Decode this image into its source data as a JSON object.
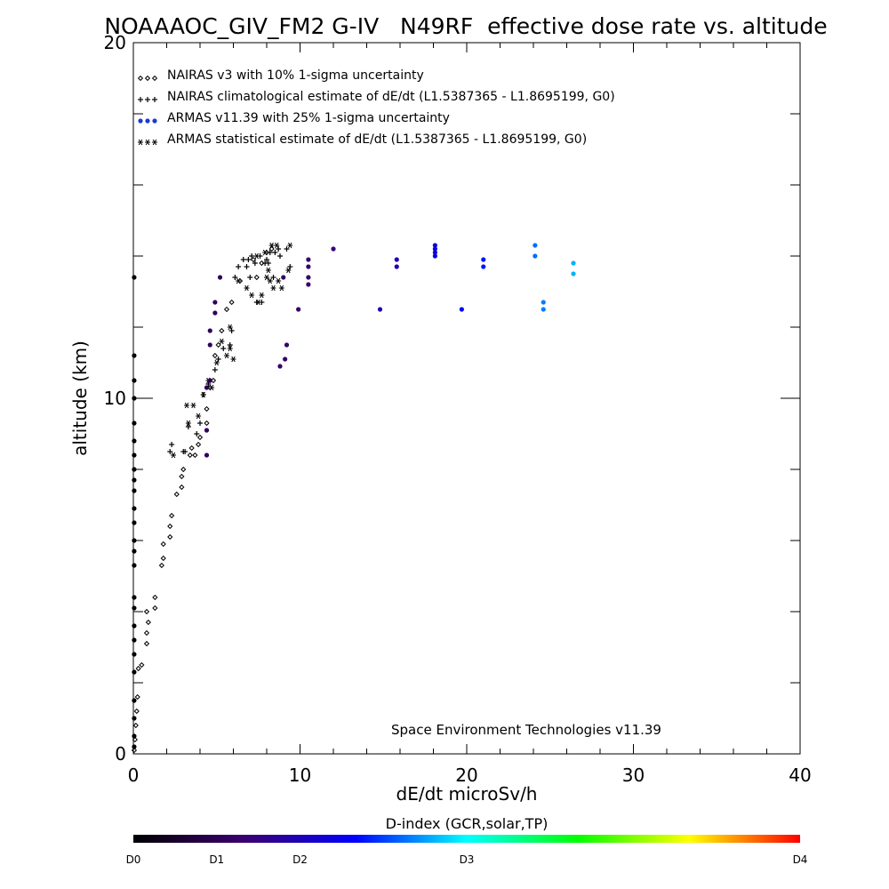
{
  "chart_data": {
    "type": "scatter",
    "title": "NOAAAOC_GIV_FM2 G-IV   N49RF  effective dose rate vs. altitude",
    "xlabel": "dE/dt microSv/h",
    "ylabel": "altitude (km)",
    "xlim": [
      0,
      40
    ],
    "ylim": [
      0,
      20
    ],
    "x_ticks": [
      0,
      10,
      20,
      30,
      40
    ],
    "y_ticks": [
      0,
      10,
      20
    ],
    "grid": false,
    "legend_placement": "top-left",
    "legend": [
      {
        "name": "NAIRAS v3 with 10% 1-sigma uncertainty",
        "marker": "diamond",
        "glyph": "◇◇◇"
      },
      {
        "name": "NAIRAS climatological estimate of dE/dt (L1.5387365 - L1.8695199, G0)",
        "marker": "plus",
        "glyph": "+++"
      },
      {
        "name": "ARMAS v11.39 with 25% 1-sigma uncertainty",
        "marker": "dot",
        "glyph": "●●●"
      },
      {
        "name": "ARMAS statistical estimate of dE/dt (L1.5387365 - L1.8695199, G0)",
        "marker": "asterisk",
        "glyph": "***"
      }
    ],
    "annotation": "Space Environment Technologies v11.39",
    "colorbar": {
      "title": "D-index (GCR,solar,TP)",
      "labels": [
        {
          "text": "D0",
          "pos": 0.0
        },
        {
          "text": "D1",
          "pos": 0.125
        },
        {
          "text": "D2",
          "pos": 0.25
        },
        {
          "text": "D3",
          "pos": 0.5
        },
        {
          "text": "D4",
          "pos": 1.0
        }
      ],
      "colors": [
        "#000000",
        "#3a0070",
        "#0000ff",
        "#00ffff",
        "#00ff00",
        "#ffff00",
        "#ff0000"
      ]
    },
    "series": [
      {
        "name": "NAIRAS v3 with 10% 1-sigma uncertainty",
        "marker": "diamond",
        "points": [
          [
            0.05,
            0.1
          ],
          [
            0.1,
            0.4
          ],
          [
            0.15,
            0.8
          ],
          [
            0.2,
            1.2
          ],
          [
            0.25,
            1.6
          ],
          [
            0.3,
            2.4
          ],
          [
            0.5,
            2.5
          ],
          [
            0.8,
            3.1
          ],
          [
            0.8,
            3.4
          ],
          [
            0.9,
            3.7
          ],
          [
            0.8,
            4.0
          ],
          [
            1.3,
            4.1
          ],
          [
            1.3,
            4.4
          ],
          [
            1.7,
            5.3
          ],
          [
            1.8,
            5.5
          ],
          [
            1.8,
            5.9
          ],
          [
            2.2,
            6.1
          ],
          [
            2.2,
            6.4
          ],
          [
            2.3,
            6.7
          ],
          [
            2.6,
            7.3
          ],
          [
            2.9,
            7.5
          ],
          [
            2.9,
            7.8
          ],
          [
            3.0,
            8.0
          ],
          [
            3.4,
            8.4
          ],
          [
            3.5,
            8.6
          ],
          [
            3.7,
            8.4
          ],
          [
            3.9,
            8.7
          ],
          [
            4.0,
            8.9
          ],
          [
            4.4,
            9.3
          ],
          [
            4.4,
            9.7
          ],
          [
            4.6,
            10.3
          ],
          [
            4.8,
            10.5
          ],
          [
            4.9,
            11.2
          ],
          [
            5.1,
            11.5
          ],
          [
            5.3,
            11.9
          ],
          [
            5.6,
            12.5
          ],
          [
            5.9,
            12.7
          ],
          [
            6.4,
            13.3
          ],
          [
            7.4,
            13.4
          ],
          [
            7.7,
            13.8
          ],
          [
            7.2,
            13.9
          ],
          [
            8.0,
            14.1
          ],
          [
            8.3,
            14.2
          ]
        ]
      },
      {
        "name": "NAIRAS climatological estimate of dE/dt (L1.5387365 - L1.8695199, G0)",
        "marker": "plus",
        "points": [
          [
            2.2,
            8.5
          ],
          [
            2.3,
            8.7
          ],
          [
            3.0,
            8.5
          ],
          [
            3.1,
            8.5
          ],
          [
            3.3,
            9.2
          ],
          [
            3.8,
            9.0
          ],
          [
            4.0,
            9.3
          ],
          [
            4.2,
            10.1
          ],
          [
            4.5,
            10.4
          ],
          [
            4.9,
            10.8
          ],
          [
            5.1,
            11.1
          ],
          [
            5.4,
            11.4
          ],
          [
            5.8,
            11.5
          ],
          [
            5.9,
            11.9
          ],
          [
            6.1,
            13.4
          ],
          [
            6.3,
            13.7
          ],
          [
            6.8,
            13.7
          ],
          [
            7.0,
            13.4
          ],
          [
            7.4,
            12.7
          ],
          [
            7.7,
            12.7
          ],
          [
            7.9,
            13.8
          ],
          [
            8.0,
            13.9
          ],
          [
            8.2,
            14.1
          ],
          [
            8.5,
            14.1
          ],
          [
            8.7,
            14.2
          ],
          [
            9.2,
            14.2
          ],
          [
            9.4,
            13.7
          ],
          [
            7.1,
            14.0
          ],
          [
            7.6,
            14.0
          ],
          [
            8.1,
            13.8
          ],
          [
            6.6,
            13.9
          ],
          [
            6.9,
            13.9
          ],
          [
            7.3,
            13.8
          ],
          [
            8.4,
            13.4
          ],
          [
            8.8,
            14.0
          ]
        ]
      },
      {
        "name": "ARMAS statistical estimate of dE/dt (L1.5387365 - L1.8695199, G0)",
        "marker": "asterisk",
        "points": [
          [
            2.4,
            8.4
          ],
          [
            3.2,
            9.8
          ],
          [
            3.3,
            9.3
          ],
          [
            3.6,
            9.8
          ],
          [
            3.9,
            9.5
          ],
          [
            4.2,
            10.1
          ],
          [
            4.5,
            10.5
          ],
          [
            4.7,
            10.3
          ],
          [
            5.0,
            11.0
          ],
          [
            5.3,
            11.6
          ],
          [
            5.6,
            11.2
          ],
          [
            5.8,
            12.0
          ],
          [
            6.0,
            11.1
          ],
          [
            5.8,
            11.4
          ],
          [
            6.3,
            13.3
          ],
          [
            6.8,
            13.1
          ],
          [
            7.1,
            12.9
          ],
          [
            7.5,
            12.7
          ],
          [
            7.7,
            12.9
          ],
          [
            8.0,
            13.4
          ],
          [
            8.2,
            13.3
          ],
          [
            8.4,
            13.1
          ],
          [
            8.7,
            13.3
          ],
          [
            8.9,
            13.1
          ],
          [
            9.3,
            13.6
          ],
          [
            7.9,
            14.1
          ],
          [
            8.3,
            14.3
          ],
          [
            8.6,
            14.3
          ],
          [
            7.4,
            14.0
          ],
          [
            9.4,
            14.3
          ],
          [
            8.1,
            13.6
          ]
        ]
      },
      {
        "name": "ARMAS v11.39 with 25% 1-sigma uncertainty",
        "marker": "dot",
        "points": [
          [
            0.05,
            0.2
          ],
          [
            0.05,
            0.5
          ],
          [
            0.05,
            1.0
          ],
          [
            0.05,
            1.5
          ],
          [
            0.05,
            2.3
          ],
          [
            0.05,
            2.8
          ],
          [
            0.05,
            3.2
          ],
          [
            0.05,
            3.6
          ],
          [
            0.05,
            4.1
          ],
          [
            0.05,
            4.4
          ],
          [
            0.05,
            5.3
          ],
          [
            0.05,
            5.7
          ],
          [
            0.05,
            6.0
          ],
          [
            0.05,
            6.5
          ],
          [
            0.05,
            6.9
          ],
          [
            0.05,
            7.4
          ],
          [
            0.05,
            7.7
          ],
          [
            0.05,
            8.0
          ],
          [
            0.05,
            8.4
          ],
          [
            0.05,
            8.8
          ],
          [
            0.05,
            9.3
          ],
          [
            0.05,
            10.0
          ],
          [
            0.05,
            10.5
          ],
          [
            0.05,
            11.2
          ],
          [
            0.05,
            13.4
          ],
          [
            4.4,
            8.4
          ],
          [
            4.4,
            9.1
          ],
          [
            4.4,
            10.3
          ],
          [
            4.6,
            11.5
          ],
          [
            4.6,
            11.9
          ],
          [
            4.9,
            12.4
          ],
          [
            4.9,
            12.7
          ],
          [
            5.2,
            13.4
          ],
          [
            4.6,
            10.5
          ],
          [
            8.8,
            10.9
          ],
          [
            9.1,
            11.1
          ],
          [
            9.2,
            11.5
          ],
          [
            9.0,
            13.4
          ],
          [
            9.9,
            12.5
          ],
          [
            10.5,
            13.2
          ],
          [
            10.5,
            13.4
          ],
          [
            10.5,
            13.7
          ],
          [
            10.5,
            13.9
          ],
          [
            12.0,
            14.2
          ],
          [
            14.8,
            12.5
          ],
          [
            15.8,
            13.7
          ],
          [
            15.8,
            13.9
          ],
          [
            18.1,
            14.1
          ],
          [
            18.1,
            14.2
          ],
          [
            18.1,
            14.3
          ],
          [
            18.1,
            14.0
          ],
          [
            19.7,
            12.5
          ],
          [
            21.0,
            13.7
          ],
          [
            21.0,
            13.9
          ],
          [
            24.1,
            14.3
          ],
          [
            24.1,
            14.0
          ],
          [
            24.6,
            12.5
          ],
          [
            24.6,
            12.7
          ],
          [
            26.4,
            13.5
          ],
          [
            26.4,
            13.8
          ]
        ]
      }
    ]
  }
}
